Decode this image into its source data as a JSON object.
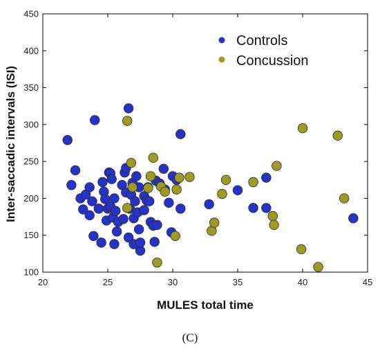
{
  "panel_label": "(C)",
  "chart_data": {
    "type": "scatter",
    "xlabel": "MULES total time",
    "ylabel": "Inter-saccadic intervals (ISI)",
    "xlim": [
      20,
      45
    ],
    "ylim": [
      100,
      450
    ],
    "xticks": [
      20,
      25,
      30,
      35,
      40,
      45
    ],
    "yticks": [
      100,
      150,
      200,
      250,
      300,
      350,
      400,
      450
    ],
    "grid": false,
    "legend_position": "top-right",
    "series": [
      {
        "name": "Controls",
        "color": "#2433c8",
        "points": [
          [
            21.9,
            279
          ],
          [
            22.2,
            218
          ],
          [
            22.5,
            238
          ],
          [
            22.9,
            200
          ],
          [
            23.1,
            185
          ],
          [
            23.3,
            205
          ],
          [
            23.6,
            215
          ],
          [
            23.6,
            177
          ],
          [
            23.8,
            196
          ],
          [
            23.9,
            149
          ],
          [
            24.0,
            306
          ],
          [
            24.3,
            186
          ],
          [
            24.5,
            140
          ],
          [
            24.6,
            222
          ],
          [
            24.7,
            209
          ],
          [
            24.8,
            199
          ],
          [
            24.9,
            170
          ],
          [
            25.0,
            186
          ],
          [
            25.1,
            235
          ],
          [
            25.2,
            234
          ],
          [
            25.2,
            189
          ],
          [
            25.3,
            226
          ],
          [
            25.4,
            174
          ],
          [
            25.5,
            138
          ],
          [
            25.5,
            200
          ],
          [
            25.6,
            183
          ],
          [
            25.7,
            155
          ],
          [
            25.8,
            168
          ],
          [
            26.1,
            218
          ],
          [
            26.2,
            172
          ],
          [
            26.3,
            235
          ],
          [
            26.4,
            241
          ],
          [
            26.4,
            208
          ],
          [
            26.6,
            322
          ],
          [
            26.6,
            147
          ],
          [
            26.7,
            186
          ],
          [
            26.8,
            205
          ],
          [
            26.9,
            221
          ],
          [
            27.0,
            138
          ],
          [
            27.0,
            173
          ],
          [
            27.1,
            196
          ],
          [
            27.2,
            230
          ],
          [
            27.3,
            181
          ],
          [
            27.4,
            215
          ],
          [
            27.4,
            158
          ],
          [
            27.5,
            129
          ],
          [
            27.5,
            140
          ],
          [
            27.8,
            203
          ],
          [
            27.8,
            184
          ],
          [
            28.0,
            197
          ],
          [
            28.1,
            215
          ],
          [
            28.2,
            196
          ],
          [
            28.3,
            168
          ],
          [
            28.5,
            163
          ],
          [
            28.6,
            141
          ],
          [
            28.7,
            224
          ],
          [
            28.8,
            164
          ],
          [
            29.0,
            220
          ],
          [
            29.3,
            240
          ],
          [
            29.4,
            212
          ],
          [
            29.7,
            194
          ],
          [
            29.9,
            154
          ],
          [
            30.0,
            230
          ],
          [
            30.3,
            225
          ],
          [
            30.6,
            287
          ],
          [
            30.6,
            186
          ],
          [
            32.8,
            192
          ],
          [
            35.0,
            211
          ],
          [
            36.2,
            187
          ],
          [
            37.2,
            228
          ],
          [
            37.2,
            187
          ],
          [
            43.9,
            173
          ]
        ]
      },
      {
        "name": "Concussion",
        "color": "#a09a22",
        "points": [
          [
            26.5,
            305
          ],
          [
            26.5,
            187
          ],
          [
            26.8,
            248
          ],
          [
            26.9,
            215
          ],
          [
            28.1,
            214
          ],
          [
            28.3,
            230
          ],
          [
            28.5,
            255
          ],
          [
            28.8,
            113
          ],
          [
            29.1,
            216
          ],
          [
            29.4,
            209
          ],
          [
            30.2,
            149
          ],
          [
            30.3,
            212
          ],
          [
            30.5,
            228
          ],
          [
            31.3,
            229
          ],
          [
            33.0,
            156
          ],
          [
            33.2,
            167
          ],
          [
            33.8,
            206
          ],
          [
            34.1,
            225
          ],
          [
            36.2,
            222
          ],
          [
            37.7,
            176
          ],
          [
            37.8,
            164
          ],
          [
            38.0,
            244
          ],
          [
            39.9,
            131
          ],
          [
            40.0,
            295
          ],
          [
            41.2,
            107
          ],
          [
            42.7,
            285
          ],
          [
            43.2,
            200
          ]
        ]
      }
    ]
  }
}
